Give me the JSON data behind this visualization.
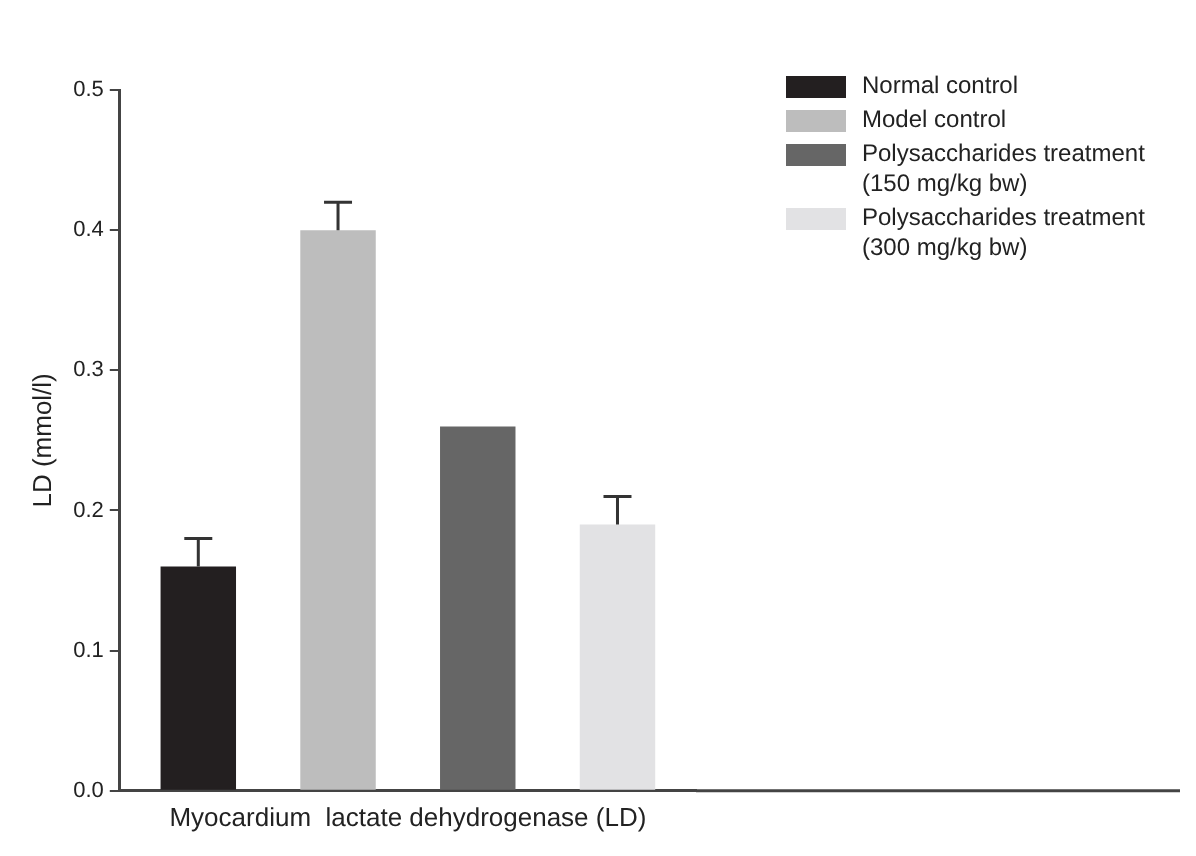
{
  "chart_data": {
    "type": "bar",
    "ylabel": "LD (mmol/l)",
    "categories": [
      "Myocardium  lactate dehydrogenase (LD)"
    ],
    "series": [
      {
        "name": "Normal control",
        "color": "#231f20",
        "values": [
          0.16
        ],
        "errors": [
          [
            0.16,
            0.18
          ]
        ]
      },
      {
        "name": "Model control",
        "color": "#bdbdbd",
        "values": [
          0.4
        ],
        "errors": [
          [
            0.4,
            0.42
          ]
        ]
      },
      {
        "name": "Polysaccharides treatment (150 mg/kg bw)",
        "color": "#666666",
        "values": [
          0.26
        ]
      },
      {
        "name": "Polysaccharides treatment (300 mg/kg bw)",
        "color": "#e2e2e4",
        "values": [
          0.19
        ],
        "errors": [
          [
            0.19,
            0.21
          ]
        ]
      }
    ],
    "ylim": [
      0,
      0.5
    ],
    "yticks": [
      {
        "value": 0,
        "label": "0.0"
      },
      0.1,
      0.2,
      0.3,
      0.4,
      0.5
    ],
    "grid": false,
    "legend": "top right"
  }
}
